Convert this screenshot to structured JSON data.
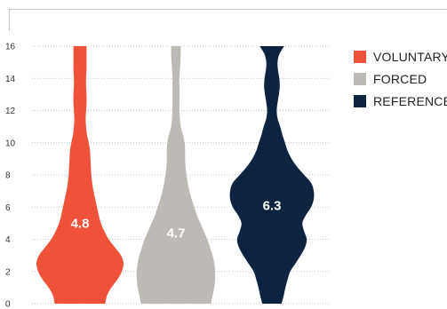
{
  "chart_data": {
    "type": "violin",
    "ylim": [
      0,
      16
    ],
    "yticks": [
      0,
      2,
      4,
      6,
      8,
      10,
      12,
      14,
      16
    ],
    "series": [
      {
        "name": "VOLUNTARY",
        "color": "#ef5238",
        "label": "4.8",
        "label_color": "#ffffff",
        "density": [
          [
            0,
            0.58
          ],
          [
            0.5,
            0.62
          ],
          [
            1,
            0.72
          ],
          [
            1.5,
            0.86
          ],
          [
            2,
            0.96
          ],
          [
            2.5,
            1.0
          ],
          [
            3,
            0.94
          ],
          [
            3.5,
            0.8
          ],
          [
            4,
            0.66
          ],
          [
            4.5,
            0.56
          ],
          [
            5,
            0.48
          ],
          [
            5.5,
            0.43
          ],
          [
            6,
            0.39
          ],
          [
            6.5,
            0.35
          ],
          [
            7,
            0.31
          ],
          [
            7.5,
            0.28
          ],
          [
            8,
            0.26
          ],
          [
            8.5,
            0.25
          ],
          [
            9,
            0.24
          ],
          [
            9.5,
            0.23
          ],
          [
            10,
            0.2
          ],
          [
            10.5,
            0.16
          ],
          [
            11,
            0.14
          ],
          [
            11.5,
            0.13
          ],
          [
            12,
            0.14
          ],
          [
            12.5,
            0.15
          ],
          [
            13,
            0.15
          ],
          [
            13.5,
            0.14
          ],
          [
            14,
            0.14
          ],
          [
            14.5,
            0.15
          ],
          [
            15,
            0.15
          ],
          [
            15.5,
            0.15
          ],
          [
            16,
            0.15
          ]
        ]
      },
      {
        "name": "FORCED",
        "color": "#bdbab5",
        "label": "4.7",
        "label_color": "#ffffff",
        "density": [
          [
            0,
            0.8
          ],
          [
            0.5,
            0.84
          ],
          [
            1,
            0.88
          ],
          [
            1.5,
            0.9
          ],
          [
            2,
            0.9
          ],
          [
            2.5,
            0.88
          ],
          [
            3,
            0.84
          ],
          [
            3.5,
            0.78
          ],
          [
            4,
            0.72
          ],
          [
            4.5,
            0.64
          ],
          [
            5,
            0.56
          ],
          [
            5.5,
            0.48
          ],
          [
            6,
            0.42
          ],
          [
            6.5,
            0.36
          ],
          [
            7,
            0.31
          ],
          [
            7.5,
            0.27
          ],
          [
            8,
            0.24
          ],
          [
            8.5,
            0.22
          ],
          [
            9,
            0.21
          ],
          [
            9.5,
            0.21
          ],
          [
            10,
            0.2
          ],
          [
            10.5,
            0.16
          ],
          [
            11,
            0.11
          ],
          [
            11.5,
            0.09
          ],
          [
            12,
            0.08
          ],
          [
            12.5,
            0.08
          ],
          [
            13,
            0.08
          ],
          [
            13.5,
            0.08
          ],
          [
            14,
            0.08
          ],
          [
            14.5,
            0.09
          ],
          [
            15,
            0.1
          ],
          [
            15.5,
            0.11
          ],
          [
            16,
            0.11
          ]
        ]
      },
      {
        "name": "REFERENCE",
        "color": "#0e2340",
        "label": "6.3",
        "label_color": "#ffffff",
        "density": [
          [
            0,
            0.22
          ],
          [
            0.5,
            0.27
          ],
          [
            1,
            0.31
          ],
          [
            1.5,
            0.36
          ],
          [
            2,
            0.42
          ],
          [
            2.5,
            0.54
          ],
          [
            3,
            0.66
          ],
          [
            3.5,
            0.76
          ],
          [
            4,
            0.8
          ],
          [
            4.5,
            0.74
          ],
          [
            5,
            0.7
          ],
          [
            5.5,
            0.78
          ],
          [
            6,
            0.9
          ],
          [
            6.5,
            0.96
          ],
          [
            7,
            0.96
          ],
          [
            7.5,
            0.9
          ],
          [
            8,
            0.74
          ],
          [
            8.5,
            0.58
          ],
          [
            9,
            0.45
          ],
          [
            9.5,
            0.36
          ],
          [
            10,
            0.3
          ],
          [
            10.5,
            0.24
          ],
          [
            11,
            0.19
          ],
          [
            11.5,
            0.13
          ],
          [
            12,
            0.11
          ],
          [
            12.5,
            0.13
          ],
          [
            13,
            0.16
          ],
          [
            13.5,
            0.18
          ],
          [
            14,
            0.17
          ],
          [
            14.5,
            0.14
          ],
          [
            15,
            0.13
          ],
          [
            15.5,
            0.17
          ],
          [
            16,
            0.28
          ]
        ]
      }
    ]
  }
}
